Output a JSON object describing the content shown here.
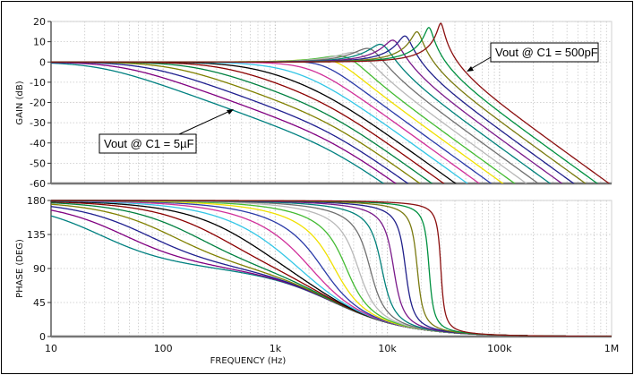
{
  "chart_data": [
    {
      "type": "line",
      "title": "",
      "xlabel": "FREQUENCY (Hz)",
      "ylabel": "GAIN (dB)",
      "xscale": "log",
      "xlim": [
        10,
        1000000
      ],
      "ylim": [
        -60,
        20
      ],
      "yticks": [
        "20",
        "10",
        "0",
        "-10",
        "-20",
        "-30",
        "-40",
        "-50",
        "-60"
      ],
      "ytick_values": [
        20,
        10,
        0,
        -10,
        -20,
        -30,
        -40,
        -50,
        -60
      ],
      "grid": true,
      "annotations": [
        {
          "text": "Vout @ C1 = 5µF",
          "points_to_hz": 1000,
          "points_to_db": -29
        },
        {
          "text": "Vout @ C1 = 500pF",
          "points_to_hz": 50000,
          "points_to_db": -1
        }
      ]
    },
    {
      "type": "line",
      "title": "",
      "xlabel": "FREQUENCY (Hz)",
      "ylabel": "PHASE (DEG)",
      "xscale": "log",
      "xlim": [
        10,
        1000000
      ],
      "ylim": [
        0,
        180
      ],
      "yticks": [
        "180",
        "135",
        "90",
        "45",
        "0"
      ],
      "ytick_values": [
        180,
        135,
        90,
        45,
        0
      ],
      "xticks": [
        "10",
        "100",
        "1k",
        "10k",
        "100k",
        "1M"
      ],
      "xtick_values": [
        10,
        100,
        1000,
        10000,
        100000,
        1000000
      ],
      "grid": true
    }
  ],
  "series_model": {
    "description": "second-order low-pass response per C1 value, gain = |H|, phase = 180 + arg(H)",
    "c1_max_f": 5e-06,
    "c1_min_f": 5e-10,
    "count": 20,
    "f0_at_min_c_hz": 30000,
    "q_at_min_c": 9,
    "colors": [
      "#008080",
      "#800080",
      "#1f1f8f",
      "#808000",
      "#008040",
      "#8b0000",
      "#000000",
      "#33c6e6",
      "#d0309a",
      "#2a3aa8",
      "#f0e000",
      "#44bb33",
      "#b8b8b8",
      "#707070",
      "#00807a",
      "#7a1a8a",
      "#20208a",
      "#7a7a10",
      "#009040",
      "#8b1010"
    ]
  }
}
